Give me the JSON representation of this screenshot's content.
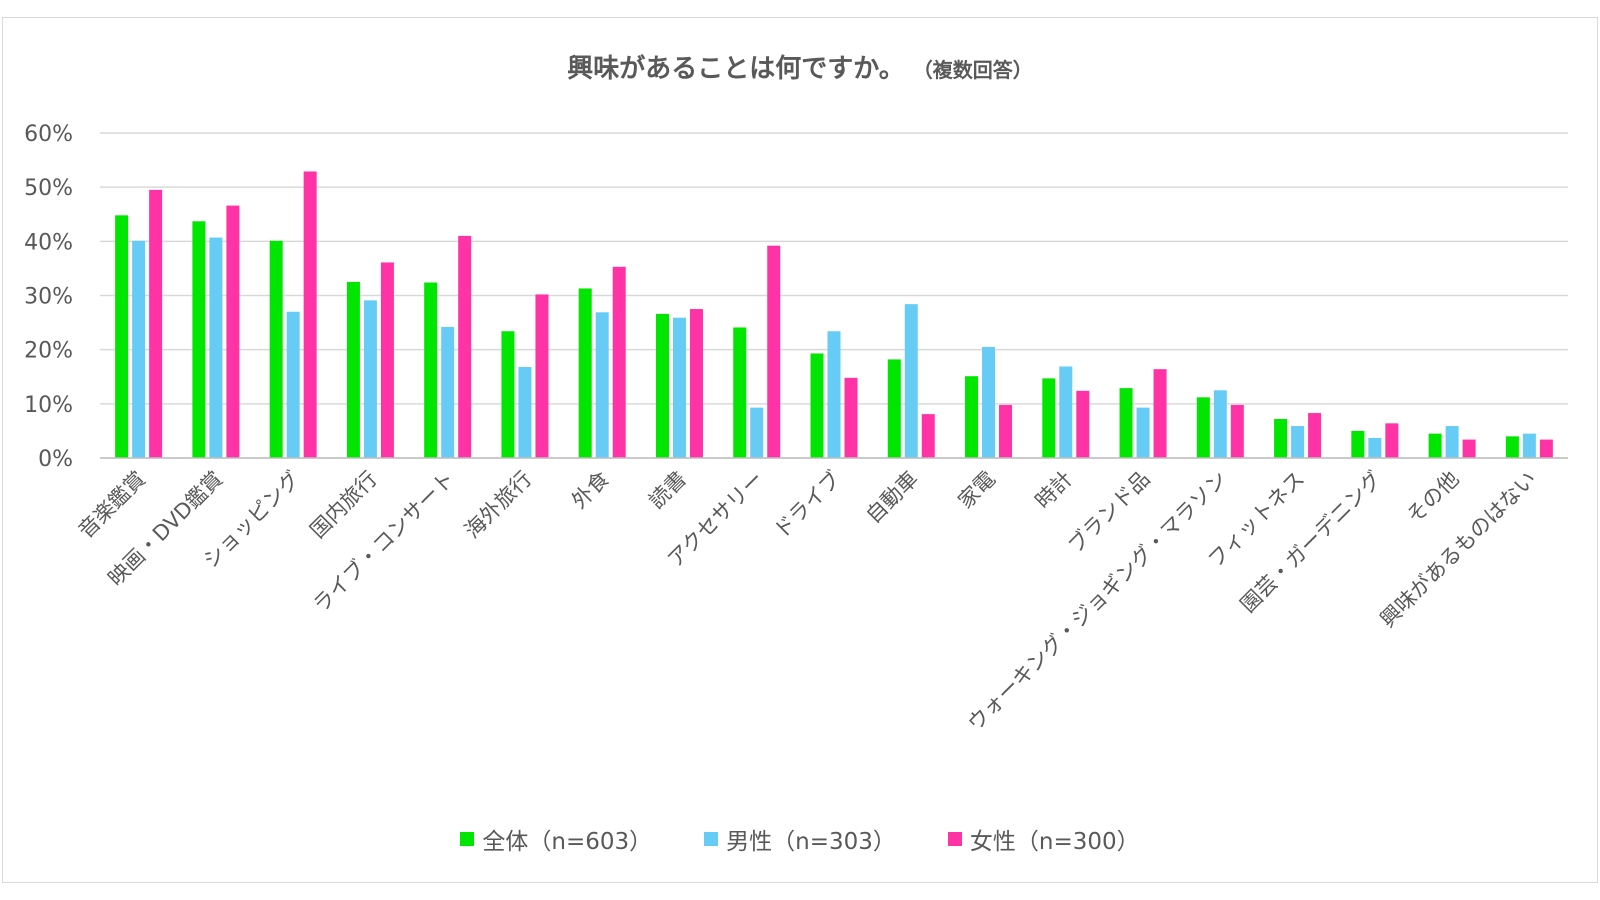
{
  "chart_data": {
    "type": "bar",
    "title": "興味があることは何ですか。",
    "subtitle": "（複数回答）",
    "ylim": [
      0,
      0.6
    ],
    "yticks": [
      "0%",
      "10%",
      "20%",
      "30%",
      "40%",
      "50%",
      "60%"
    ],
    "grid": true,
    "legend_position": "bottom",
    "categories": [
      "音楽鑑賞",
      "映画・DVD鑑賞",
      "ショッピング",
      "国内旅行",
      "ライブ・コンサート",
      "海外旅行",
      "外食",
      "読書",
      "アクセサリー",
      "ドライブ",
      "自動車",
      "家電",
      "時計",
      "ブランド品",
      "ウォーキング・ジョギング・マラソン",
      "フィットネス",
      "園芸・ガーデニング",
      "その他",
      "興味があるものはない"
    ],
    "series": [
      {
        "name": "全体（n=603）",
        "color": "#00e600",
        "values": [
          0.448,
          0.437,
          0.401,
          0.325,
          0.324,
          0.234,
          0.313,
          0.266,
          0.241,
          0.193,
          0.182,
          0.151,
          0.147,
          0.129,
          0.112,
          0.072,
          0.05,
          0.045,
          0.04
        ]
      },
      {
        "name": "男性（n=303）",
        "color": "#66ccf5",
        "values": [
          0.401,
          0.407,
          0.27,
          0.291,
          0.242,
          0.168,
          0.269,
          0.259,
          0.093,
          0.234,
          0.284,
          0.205,
          0.169,
          0.093,
          0.125,
          0.059,
          0.037,
          0.059,
          0.045
        ]
      },
      {
        "name": "女性（n=300）",
        "color": "#ff33a6",
        "values": [
          0.495,
          0.466,
          0.529,
          0.361,
          0.41,
          0.302,
          0.353,
          0.275,
          0.392,
          0.148,
          0.081,
          0.098,
          0.124,
          0.164,
          0.098,
          0.083,
          0.064,
          0.034,
          0.034
        ]
      }
    ]
  }
}
